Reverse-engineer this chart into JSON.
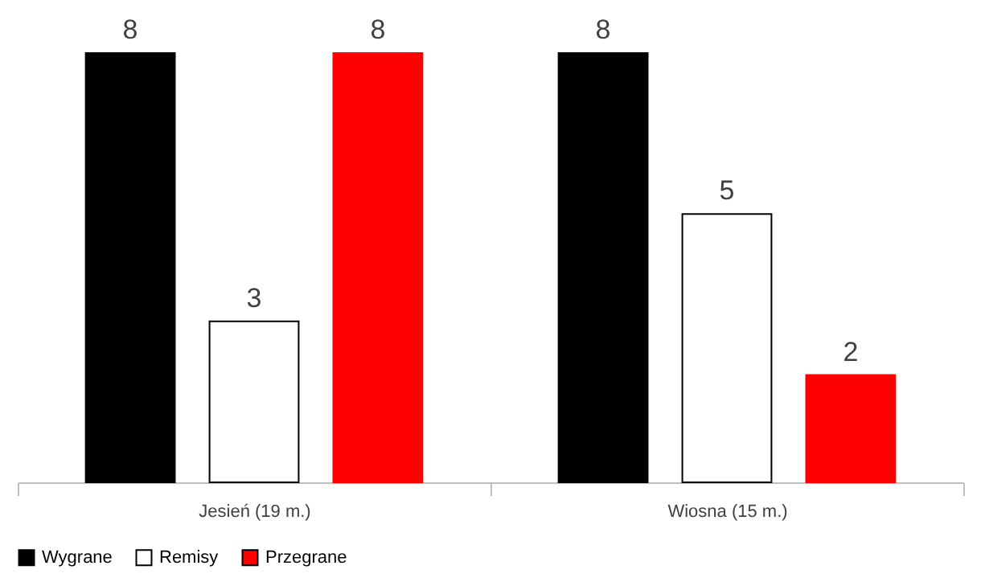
{
  "chart_data": {
    "type": "bar",
    "categories": [
      "Jesień (19 m.)",
      "Wiosna (15 m.)"
    ],
    "series": [
      {
        "name": "Wygrane",
        "color": "#000000",
        "values": [
          8,
          8
        ]
      },
      {
        "name": "Remisy",
        "color": "#ffffff",
        "values": [
          3,
          5
        ]
      },
      {
        "name": "Przegrane",
        "color": "#ff0000",
        "values": [
          8,
          2
        ]
      }
    ],
    "data_labels": true,
    "legend": "bottom",
    "grid": false
  }
}
